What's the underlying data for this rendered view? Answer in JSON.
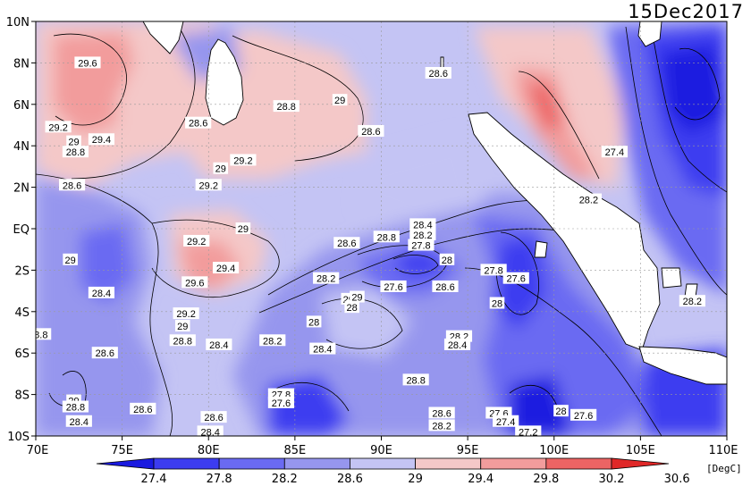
{
  "date": "15Dec2017",
  "units": "[DegC]",
  "map": {
    "lon_ticks": [
      "70E",
      "75E",
      "80E",
      "85E",
      "90E",
      "95E",
      "100E",
      "105E",
      "110E"
    ],
    "lat_ticks": [
      "10N",
      "8N",
      "6N",
      "4N",
      "2N",
      "EQ",
      "2S",
      "4S",
      "6S",
      "8S",
      "10S"
    ],
    "lon_range": [
      70,
      110
    ],
    "lat_range": [
      -10,
      10
    ]
  },
  "colorbar": {
    "levels": [
      "27.4",
      "27.8",
      "28.2",
      "28.6",
      "29",
      "29.4",
      "29.8",
      "30.2",
      "30.6"
    ],
    "colors": [
      "#1a1ae0",
      "#3c3cf0",
      "#6a6af2",
      "#9696ee",
      "#c4c4f4",
      "#f4c8c8",
      "#f29c9c",
      "#ec6464",
      "#e02828"
    ]
  },
  "contour_labels": [
    {
      "text": "29.6",
      "lon": 73.0,
      "lat": 8.0
    },
    {
      "text": "29.2",
      "lon": 71.3,
      "lat": 4.9
    },
    {
      "text": "29",
      "lon": 72.2,
      "lat": 4.2
    },
    {
      "text": "29.4",
      "lon": 73.8,
      "lat": 4.3
    },
    {
      "text": "28.8",
      "lon": 72.3,
      "lat": 3.7
    },
    {
      "text": "28.6",
      "lon": 72.1,
      "lat": 2.1
    },
    {
      "text": "28.6",
      "lon": 79.4,
      "lat": 5.1
    },
    {
      "text": "28.8",
      "lon": 84.5,
      "lat": 5.9
    },
    {
      "text": "29",
      "lon": 87.6,
      "lat": 6.2
    },
    {
      "text": "28.6",
      "lon": 89.4,
      "lat": 4.7
    },
    {
      "text": "28.6",
      "lon": 93.3,
      "lat": 7.5
    },
    {
      "text": "29",
      "lon": 80.7,
      "lat": 2.9
    },
    {
      "text": "29.2",
      "lon": 82.0,
      "lat": 3.3
    },
    {
      "text": "29.2",
      "lon": 80.0,
      "lat": 2.1
    },
    {
      "text": "29",
      "lon": 82.0,
      "lat": 0.0
    },
    {
      "text": "29.2",
      "lon": 79.3,
      "lat": -0.6
    },
    {
      "text": "29.4",
      "lon": 81.0,
      "lat": -1.9
    },
    {
      "text": "29.6",
      "lon": 79.2,
      "lat": -2.6
    },
    {
      "text": "29.2",
      "lon": 78.7,
      "lat": -4.1
    },
    {
      "text": "29",
      "lon": 78.5,
      "lat": -4.7
    },
    {
      "text": "28.8",
      "lon": 78.5,
      "lat": -5.4
    },
    {
      "text": "28.4",
      "lon": 80.6,
      "lat": -5.6
    },
    {
      "text": "28.2",
      "lon": 83.7,
      "lat": -5.4
    },
    {
      "text": "29",
      "lon": 72.0,
      "lat": -1.5
    },
    {
      "text": "28.4",
      "lon": 73.8,
      "lat": -3.1
    },
    {
      "text": "28.6",
      "lon": 74.0,
      "lat": -6.0
    },
    {
      "text": "28.2",
      "lon": 86.8,
      "lat": -2.4
    },
    {
      "text": "28",
      "lon": 86.1,
      "lat": -4.5
    },
    {
      "text": "28.4",
      "lon": 86.6,
      "lat": -5.8
    },
    {
      "text": "29",
      "lon": 88.1,
      "lat": -3.4
    },
    {
      "text": "28",
      "lon": 88.3,
      "lat": -3.8
    },
    {
      "text": "27.6",
      "lon": 90.7,
      "lat": -2.8
    },
    {
      "text": "28.6",
      "lon": 88.0,
      "lat": -0.7
    },
    {
      "text": "28.8",
      "lon": 90.3,
      "lat": -0.4
    },
    {
      "text": "28.4",
      "lon": 92.4,
      "lat": 0.2
    },
    {
      "text": "28.2",
      "lon": 92.4,
      "lat": -0.3
    },
    {
      "text": "27.8",
      "lon": 92.3,
      "lat": -0.8
    },
    {
      "text": "28",
      "lon": 93.8,
      "lat": -1.5
    },
    {
      "text": "28.6",
      "lon": 93.7,
      "lat": -2.8
    },
    {
      "text": "29",
      "lon": 88.6,
      "lat": -3.3
    },
    {
      "text": "27.8",
      "lon": 96.5,
      "lat": -2.0
    },
    {
      "text": "27.6",
      "lon": 97.8,
      "lat": -2.4
    },
    {
      "text": "28",
      "lon": 96.7,
      "lat": -3.6
    },
    {
      "text": "28.2",
      "lon": 94.5,
      "lat": -5.2
    },
    {
      "text": "28.4",
      "lon": 94.4,
      "lat": -5.6
    },
    {
      "text": "28.8",
      "lon": 92.0,
      "lat": -7.3
    },
    {
      "text": "27.8",
      "lon": 84.2,
      "lat": -8.0
    },
    {
      "text": "27.6",
      "lon": 84.2,
      "lat": -8.4
    },
    {
      "text": "28.6",
      "lon": 93.5,
      "lat": -8.9
    },
    {
      "text": "28.2",
      "lon": 93.5,
      "lat": -9.5
    },
    {
      "text": "27.6",
      "lon": 96.8,
      "lat": -8.9
    },
    {
      "text": "27.4",
      "lon": 97.2,
      "lat": -9.3
    },
    {
      "text": "27.2",
      "lon": 98.5,
      "lat": -9.8
    },
    {
      "text": "28",
      "lon": 100.4,
      "lat": -8.8
    },
    {
      "text": "27.6",
      "lon": 101.7,
      "lat": -9.0
    },
    {
      "text": "27.4",
      "lon": 103.5,
      "lat": 3.7
    },
    {
      "text": "28.2",
      "lon": 102.0,
      "lat": 1.4
    },
    {
      "text": "28.2",
      "lon": 108.0,
      "lat": -3.5
    },
    {
      "text": "29",
      "lon": 72.2,
      "lat": -8.3
    },
    {
      "text": "28.8",
      "lon": 72.3,
      "lat": -8.6
    },
    {
      "text": "28.4",
      "lon": 72.5,
      "lat": -9.3
    },
    {
      "text": "28.6",
      "lon": 76.2,
      "lat": -8.7
    },
    {
      "text": "28.6",
      "lon": 80.3,
      "lat": -9.1
    },
    {
      "text": "28.4",
      "lon": 80.1,
      "lat": -9.8
    },
    {
      "text": "8.8",
      "lon": 70.3,
      "lat": -5.1
    }
  ]
}
